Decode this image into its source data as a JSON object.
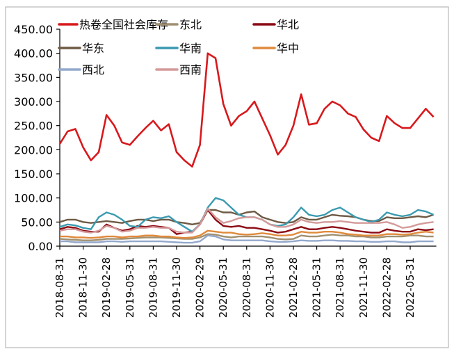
{
  "chart_data": {
    "type": "line",
    "title": "",
    "xlabel": "",
    "ylabel": "",
    "ylim": [
      0,
      450
    ],
    "yticks": [
      "0.00",
      "50.00",
      "100.00",
      "150.00",
      "200.00",
      "250.00",
      "300.00",
      "350.00",
      "400.00",
      "450.00"
    ],
    "xtick_labels": [
      "2018-08-31",
      "2018-11-30",
      "2019-02-28",
      "2019-05-31",
      "2019-08-31",
      "2019-11-30",
      "2020-02-29",
      "2020-05-31",
      "2020-08-31",
      "2020-11-30",
      "2021-02-28",
      "2021-05-31",
      "2021-08-31",
      "2021-11-30",
      "2022-02-28",
      "2022-05-31"
    ],
    "x_start": "2018-08",
    "x_end": "2022-08",
    "x_frequency": "monthly",
    "grid": false,
    "legend_placement": "top",
    "series": [
      {
        "name": "热卷全国社会库存",
        "color": "#d7191c",
        "values": [
          212,
          238,
          243,
          205,
          178,
          195,
          272,
          250,
          215,
          210,
          228,
          245,
          260,
          240,
          253,
          195,
          178,
          165,
          210,
          400,
          390,
          295,
          250,
          270,
          280,
          300,
          265,
          230,
          190,
          210,
          250,
          315,
          252,
          255,
          285,
          300,
          292,
          275,
          268,
          242,
          225,
          218,
          270,
          255,
          245,
          245,
          265,
          285,
          268
        ]
      },
      {
        "name": "东北",
        "color": "#a09070",
        "values": [
          15,
          14,
          13,
          12,
          12,
          13,
          15,
          15,
          15,
          16,
          17,
          18,
          18,
          18,
          17,
          16,
          15,
          15,
          18,
          25,
          24,
          20,
          18,
          20,
          20,
          20,
          20,
          18,
          15,
          14,
          15,
          22,
          20,
          20,
          22,
          24,
          22,
          22,
          20,
          20,
          18,
          18,
          20,
          20,
          20,
          22,
          22,
          20,
          20
        ]
      },
      {
        "name": "华北",
        "color": "#8b0a14",
        "values": [
          35,
          40,
          38,
          32,
          30,
          30,
          45,
          38,
          32,
          35,
          42,
          40,
          42,
          40,
          38,
          25,
          28,
          30,
          45,
          75,
          55,
          42,
          40,
          42,
          38,
          38,
          35,
          32,
          28,
          30,
          35,
          40,
          35,
          35,
          38,
          40,
          38,
          35,
          32,
          30,
          28,
          28,
          35,
          32,
          30,
          30,
          35,
          33,
          35
        ]
      },
      {
        "name": "华东",
        "color": "#6e5a44",
        "values": [
          50,
          55,
          55,
          50,
          48,
          50,
          52,
          50,
          48,
          52,
          55,
          55,
          52,
          55,
          55,
          50,
          48,
          45,
          48,
          75,
          75,
          70,
          70,
          65,
          70,
          72,
          60,
          55,
          50,
          48,
          50,
          60,
          55,
          55,
          60,
          65,
          63,
          62,
          60,
          55,
          52,
          52,
          60,
          58,
          58,
          60,
          62,
          60,
          65
        ]
      },
      {
        "name": "华南",
        "color": "#3a9ab0",
        "values": [
          40,
          45,
          43,
          38,
          35,
          60,
          70,
          65,
          55,
          42,
          40,
          55,
          60,
          58,
          62,
          50,
          40,
          30,
          45,
          80,
          100,
          95,
          80,
          65,
          60,
          60,
          55,
          45,
          42,
          45,
          60,
          80,
          65,
          62,
          65,
          75,
          80,
          70,
          60,
          55,
          50,
          55,
          70,
          65,
          62,
          65,
          75,
          72,
          65
        ]
      },
      {
        "name": "华中",
        "color": "#e08a3c",
        "values": [
          20,
          20,
          18,
          18,
          17,
          18,
          20,
          20,
          18,
          20,
          20,
          22,
          22,
          20,
          20,
          18,
          17,
          18,
          22,
          32,
          30,
          28,
          28,
          25,
          24,
          25,
          27,
          25,
          22,
          22,
          24,
          30,
          28,
          28,
          30,
          30,
          28,
          25,
          24,
          22,
          22,
          22,
          25,
          25,
          24,
          25,
          28,
          30,
          28
        ]
      },
      {
        "name": "西北",
        "color": "#93a8cc",
        "values": [
          10,
          10,
          8,
          8,
          8,
          8,
          10,
          10,
          9,
          10,
          10,
          10,
          10,
          10,
          9,
          8,
          7,
          7,
          10,
          22,
          20,
          14,
          12,
          12,
          12,
          12,
          12,
          10,
          9,
          9,
          10,
          12,
          11,
          11,
          12,
          12,
          11,
          11,
          10,
          10,
          9,
          9,
          10,
          10,
          8,
          8,
          10,
          10,
          10
        ]
      },
      {
        "name": "西南",
        "color": "#d49a9a",
        "values": [
          32,
          35,
          35,
          30,
          28,
          32,
          42,
          38,
          30,
          32,
          38,
          38,
          40,
          38,
          38,
          30,
          28,
          28,
          45,
          78,
          60,
          48,
          52,
          58,
          60,
          60,
          55,
          45,
          40,
          40,
          45,
          55,
          50,
          48,
          50,
          50,
          52,
          50,
          48,
          48,
          48,
          48,
          50,
          45,
          38,
          40,
          45,
          48,
          50
        ]
      }
    ]
  }
}
